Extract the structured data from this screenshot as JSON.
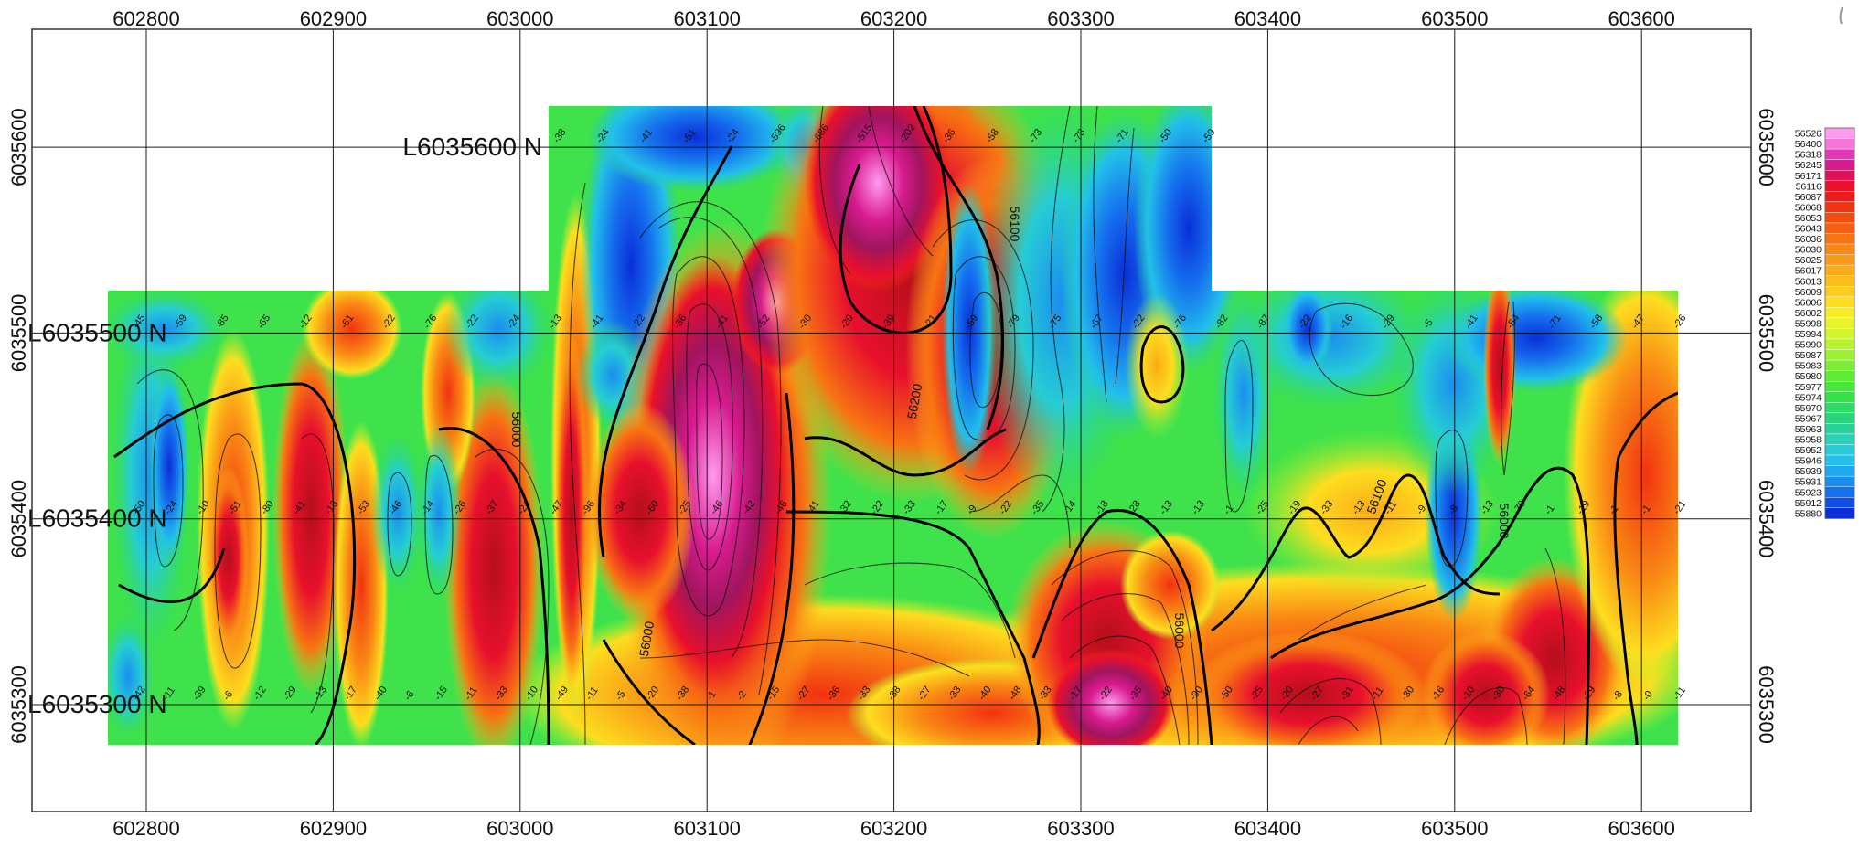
{
  "x_axis": {
    "ticks": [
      "602800",
      "602900",
      "603000",
      "603100",
      "603200",
      "603300",
      "603400",
      "603500",
      "603600"
    ],
    "values": [
      602800,
      602900,
      603000,
      603100,
      603200,
      603300,
      603400,
      603500,
      603600
    ]
  },
  "y_axis": {
    "ticks": [
      "6035300",
      "6035400",
      "6035500",
      "6035600"
    ],
    "values": [
      6035300,
      6035400,
      6035500,
      6035600
    ]
  },
  "survey_lines": [
    {
      "label": "L6035300 N",
      "northing": 6035300
    },
    {
      "label": "L6035400 N",
      "northing": 6035400
    },
    {
      "label": "L6035500 N",
      "northing": 6035500
    },
    {
      "label": "L6035600 N",
      "northing": 6035600
    }
  ],
  "legend": {
    "values": [
      "56526",
      "56400",
      "56318",
      "56245",
      "56171",
      "56116",
      "56087",
      "56068",
      "56053",
      "56043",
      "56036",
      "56030",
      "56025",
      "56017",
      "56013",
      "56009",
      "56006",
      "56002",
      "55998",
      "55994",
      "55990",
      "55987",
      "55983",
      "55980",
      "55977",
      "55974",
      "55970",
      "55967",
      "55963",
      "55958",
      "55952",
      "55946",
      "55939",
      "55931",
      "55923",
      "55912",
      "55880"
    ],
    "colors": [
      "#ff9cf0",
      "#f575d8",
      "#e238b8",
      "#d81b8f",
      "#e0105a",
      "#e8102c",
      "#ee1b1b",
      "#f23210",
      "#f54a0e",
      "#f75f10",
      "#f87412",
      "#f98814",
      "#fa9a16",
      "#fbab18",
      "#fcbc1a",
      "#fdcd1c",
      "#fdde1f",
      "#f7ec26",
      "#e8f42a",
      "#d2f52e",
      "#b8f330",
      "#9cf132",
      "#7eee34",
      "#60eb36",
      "#46e83a",
      "#33e34a",
      "#2ddc62",
      "#2ad67c",
      "#28d29a",
      "#27d2b8",
      "#26cdd4",
      "#22c0ea",
      "#1ea8f0",
      "#1a8ef0",
      "#1570ee",
      "#0f4fe8",
      "#0a2ed8"
    ]
  },
  "contour_labels": [
    "56000",
    "56100",
    "56200",
    "56000",
    "56100",
    "56000",
    "56000"
  ],
  "station_labels": {
    "L6035500": [
      "-45",
      "-59",
      "-85",
      "-65",
      "-12",
      "-61",
      "-22",
      "-76",
      "-22",
      "-24",
      "-13",
      "-41",
      "-22",
      "-36",
      "-41",
      "-52",
      "-30",
      "-20",
      "-39",
      "-21",
      "-59",
      "-79",
      "-75",
      "-67",
      "-22",
      "-76",
      "-82",
      "-87",
      "-22",
      "-16",
      "-29",
      "-5",
      "-41",
      "-54",
      "-71",
      "-58",
      "-47",
      "-26"
    ],
    "L6035400": [
      "-50",
      "-24",
      "-10",
      "-51",
      "-80",
      "-41",
      "-18",
      "-53",
      "-46",
      "-14",
      "-26",
      "-37",
      "-24",
      "-47",
      "-96",
      "-34",
      "-60",
      "-25",
      "-46",
      "-42",
      "-46",
      "-41",
      "-32",
      "-22",
      "-33",
      "-17",
      "-9",
      "-22",
      "-35",
      "-14",
      "-18",
      "-28",
      "-13",
      "-13",
      "-1",
      "-25",
      "-19",
      "-33",
      "-13",
      "-11",
      "-9",
      "-8",
      "-13",
      "-70",
      "-1",
      "-19",
      "-1",
      "-1",
      "-21"
    ],
    "L6035300": [
      "-42",
      "-11",
      "-39",
      "-6",
      "-12",
      "-29",
      "-13",
      "-17",
      "-40",
      "-6",
      "-15",
      "-11",
      "-33",
      "-10",
      "-49",
      "-11",
      "-5",
      "-20",
      "-38",
      "-1",
      "-2",
      "-15",
      "-27",
      "-36",
      "-33",
      "-38",
      "-27",
      "-33",
      "-40",
      "-48",
      "-33",
      "-17",
      "-22",
      "-35",
      "-40",
      "-90",
      "-50",
      "-25",
      "-20",
      "-27",
      "-31",
      "-11",
      "-30",
      "-16",
      "-10",
      "-30",
      "-64",
      "-48",
      "-29",
      "-8",
      "-0",
      "-11"
    ],
    "L6035600": [
      "-38",
      "-24",
      "-41",
      "-51",
      "-24",
      "-596",
      "-686",
      "-515",
      "-202",
      "-36",
      "-58",
      "-73",
      "-78",
      "-71",
      "-50",
      "-59"
    ]
  }
}
